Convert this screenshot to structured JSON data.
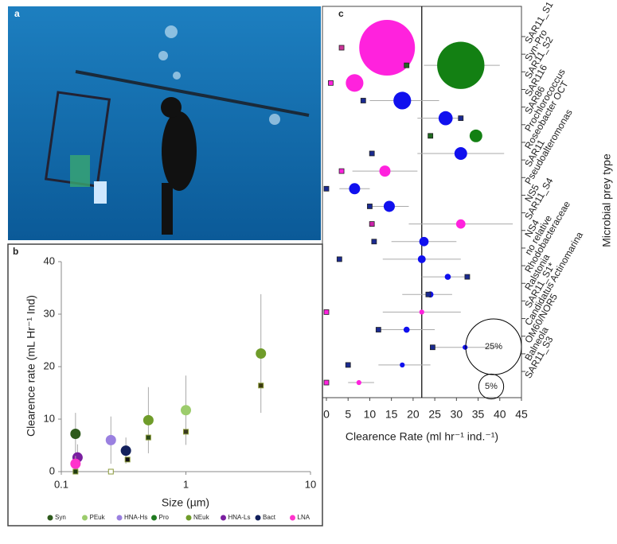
{
  "photo": {
    "label": "a"
  },
  "chart_data": [
    {
      "type": "scatter",
      "panel_label": "b",
      "xlabel": "Size (µm)",
      "ylabel": "Clearence rate (mL Hr⁻¹ Ind)",
      "log_x": true,
      "xlim": [
        0.1,
        10
      ],
      "xticks": [
        0.1,
        1,
        10
      ],
      "ylim": [
        0,
        40
      ],
      "yticks": [
        0,
        10,
        20,
        30,
        40
      ],
      "series": [
        {
          "name": "Syn",
          "color": "#2e5a1c",
          "x": [
            0.13
          ],
          "values": [
            7.2
          ],
          "yerr": [
            4
          ]
        },
        {
          "name": "PEuk",
          "color": "#9ccc6c",
          "x": [
            1.0
          ],
          "values": [
            11.7
          ],
          "yerr": [
            6.6
          ]
        },
        {
          "name": "HNA-Hs",
          "color": "#9a80e0",
          "x": [
            0.25
          ],
          "values": [
            6
          ],
          "yerr": [
            4.5
          ]
        },
        {
          "name": "Pro",
          "color": "#1f7a1f",
          "x": [],
          "values": [],
          "yerr": []
        },
        {
          "name": "NEuk",
          "color": "#6f9c2a",
          "x": [
            0.5,
            4.0
          ],
          "values": [
            9.8,
            22.5
          ],
          "yerr": [
            6.3,
            11.3
          ]
        },
        {
          "name": "HNA-Ls",
          "color": "#7a1fa0",
          "x": [
            0.135
          ],
          "values": [
            2.7
          ],
          "yerr": [
            2.5
          ]
        },
        {
          "name": "Bact",
          "color": "#12205c",
          "x": [
            0.33
          ],
          "values": [
            4
          ],
          "yerr": [
            2.5
          ]
        },
        {
          "name": "LNA",
          "color": "#ff33cc",
          "x": [
            0.13
          ],
          "values": [
            1.5
          ],
          "yerr": [
            1.5
          ]
        }
      ],
      "squares": {
        "x": [
          0.13,
          0.25,
          0.34,
          0.5,
          1.0,
          4.0
        ],
        "values": [
          0,
          0,
          2.3,
          6.5,
          7.6,
          16.4
        ],
        "colors": [
          "#1f3a12",
          "#ffffff",
          "#111111",
          "#2d4a1a",
          "#3a3a20",
          "#3a3a10"
        ]
      }
    },
    {
      "type": "bubble",
      "panel_label": "c",
      "xlabel": "Clearence Rate (ml hr⁻¹ ind.⁻¹)",
      "ylabel": "Microbial prey type",
      "xlim": [
        0,
        45
      ],
      "xticks": [
        0,
        5,
        10,
        15,
        20,
        25,
        30,
        35,
        40,
        45
      ],
      "reference_line": 22,
      "categories": [
        "SAR11_S1",
        "Syn-Pro",
        "SAR11_S2",
        "SAR116",
        "SAR86",
        "Prochlorococcus",
        "Roseobacter OCT",
        "SAR11",
        "Pseudoalteromonas",
        "NS5",
        "SAR11_S4",
        "NS4",
        "no relative",
        "Rhodobacteraceae",
        "Ralstonia",
        "SAR11_S1*",
        "Candidatus Actinomarina",
        "OM60/NOR5",
        "Balneola",
        "SAR11_S3"
      ],
      "circles": {
        "values": [
          14,
          31,
          6.5,
          17.5,
          27.5,
          34.5,
          31,
          13.5,
          6.5,
          14.5,
          31,
          22.5,
          22,
          28,
          24,
          22,
          18.5,
          32,
          17.5,
          7.5
        ],
        "sizes": [
          25,
          18,
          2.5,
          2.5,
          1.6,
          1.3,
          1.3,
          1,
          1,
          1,
          0.7,
          0.7,
          0.5,
          0.3,
          0.3,
          0.2,
          0.3,
          0.2,
          0.2,
          0.2
        ],
        "low": [
          null,
          22.5,
          null,
          10,
          21,
          null,
          21,
          6,
          3,
          10,
          19,
          15,
          13,
          22,
          17.5,
          13,
          12,
          24.5,
          12,
          5
        ],
        "high": [
          null,
          40,
          null,
          26,
          31,
          null,
          41,
          21,
          10,
          19,
          43,
          30,
          31,
          33,
          29,
          31,
          25,
          40,
          24,
          11
        ],
        "colors": [
          "#ff22dd",
          "#138013",
          "#ff22dd",
          "#1010ee",
          "#1010ee",
          "#138013",
          "#1010ee",
          "#ff22dd",
          "#1010ee",
          "#1010ee",
          "#ff22dd",
          "#1010ee",
          "#1010ee",
          "#1010ee",
          "#1010ee",
          "#ff22dd",
          "#1010ee",
          "#1010ee",
          "#1010ee",
          "#ff22dd"
        ]
      },
      "squares": {
        "values": [
          3.5,
          18.5,
          1,
          8.5,
          31,
          24,
          10.5,
          3.5,
          0,
          10,
          10.5,
          11,
          3,
          32.5,
          23.5,
          0,
          12,
          24.5,
          5,
          0
        ],
        "colors": [
          "#cc3399",
          "#1f6a1f",
          "#ff22dd",
          "#1a2a90",
          "#1a2a90",
          "#1f6a1f",
          "#1a2a90",
          "#ff22dd",
          "#1a2a90",
          "#1a2a90",
          "#cc22aa",
          "#1a2a90",
          "#1a2a90",
          "#1a2a90",
          "#1a2a90",
          "#ff22dd",
          "#1a2a90",
          "#1a2a90",
          "#1a2a90",
          "#ff22dd"
        ]
      },
      "size_legend": {
        "sizes": [
          25,
          5
        ],
        "value_labels": [
          "25%",
          "5%"
        ]
      }
    }
  ]
}
